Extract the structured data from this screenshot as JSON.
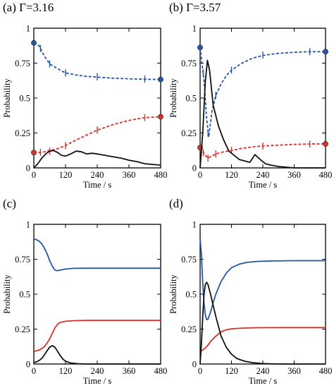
{
  "colors": {
    "blue": "#2456a8",
    "red": "#d8302a",
    "black": "#111111"
  },
  "chart_data": [
    {
      "panel": "(a)",
      "title": "(a) Γ=3.16",
      "type": "line",
      "xlabel": "Time / s",
      "ylabel": "Probability",
      "xlim": [
        0,
        480
      ],
      "ylim": [
        0,
        1
      ],
      "xticks": [
        "0",
        "120",
        "240",
        "360",
        "480"
      ],
      "yticks": [
        "0",
        "0.25",
        "0.5",
        "0.75",
        "1"
      ],
      "grid": false,
      "series": [
        {
          "color": "blue",
          "style": "dashed",
          "points": [
            [
              0,
              0.895
            ],
            [
              20,
              0.875
            ],
            [
              40,
              0.8
            ],
            [
              60,
              0.745
            ],
            [
              90,
              0.71
            ],
            [
              120,
              0.68
            ],
            [
              160,
              0.665
            ],
            [
              200,
              0.655
            ],
            [
              240,
              0.65
            ],
            [
              300,
              0.642
            ],
            [
              360,
              0.638
            ],
            [
              420,
              0.635
            ],
            [
              480,
              0.633
            ]
          ],
          "markers": [
            [
              0,
              0.895
            ],
            [
              480,
              0.633
            ]
          ],
          "errorbars": [
            [
              25,
              0.855
            ],
            [
              60,
              0.745
            ],
            [
              120,
              0.68
            ],
            [
              240,
              0.652
            ],
            [
              420,
              0.636
            ]
          ]
        },
        {
          "color": "red",
          "style": "dashed",
          "points": [
            [
              0,
              0.11
            ],
            [
              20,
              0.11
            ],
            [
              40,
              0.115
            ],
            [
              60,
              0.125
            ],
            [
              90,
              0.138
            ],
            [
              120,
              0.16
            ],
            [
              160,
              0.2
            ],
            [
              200,
              0.235
            ],
            [
              240,
              0.27
            ],
            [
              300,
              0.31
            ],
            [
              360,
              0.34
            ],
            [
              420,
              0.36
            ],
            [
              480,
              0.366
            ]
          ],
          "markers": [
            [
              0,
              0.11
            ],
            [
              480,
              0.366
            ]
          ],
          "errorbars": [
            [
              25,
              0.112
            ],
            [
              60,
              0.12
            ],
            [
              120,
              0.16
            ],
            [
              240,
              0.272
            ],
            [
              420,
              0.36
            ]
          ]
        },
        {
          "color": "black",
          "style": "solid",
          "points": [
            [
              0,
              0
            ],
            [
              15,
              0.03
            ],
            [
              30,
              0.07
            ],
            [
              45,
              0.1
            ],
            [
              60,
              0.12
            ],
            [
              75,
              0.125
            ],
            [
              90,
              0.11
            ],
            [
              105,
              0.09
            ],
            [
              120,
              0.085
            ],
            [
              140,
              0.1
            ],
            [
              160,
              0.12
            ],
            [
              180,
              0.115
            ],
            [
              200,
              0.1
            ],
            [
              220,
              0.105
            ],
            [
              240,
              0.1
            ],
            [
              270,
              0.09
            ],
            [
              300,
              0.08
            ],
            [
              330,
              0.07
            ],
            [
              360,
              0.055
            ],
            [
              390,
              0.045
            ],
            [
              420,
              0.03
            ],
            [
              450,
              0.025
            ],
            [
              480,
              0.02
            ]
          ]
        }
      ]
    },
    {
      "panel": "(b)",
      "title": "(b) Γ=3.57",
      "type": "line",
      "xlabel": "Time / s",
      "ylabel": "Probability",
      "xlim": [
        0,
        480
      ],
      "ylim": [
        0,
        1
      ],
      "xticks": [
        "0",
        "120",
        "240",
        "360",
        "480"
      ],
      "yticks": [
        "0",
        "0.25",
        "0.5",
        "0.75",
        "1"
      ],
      "grid": false,
      "series": [
        {
          "color": "blue",
          "style": "dashed",
          "points": [
            [
              0,
              0.862
            ],
            [
              15,
              0.62
            ],
            [
              25,
              0.35
            ],
            [
              33,
              0.22
            ],
            [
              45,
              0.4
            ],
            [
              60,
              0.52
            ],
            [
              80,
              0.6
            ],
            [
              100,
              0.66
            ],
            [
              120,
              0.7
            ],
            [
              160,
              0.75
            ],
            [
              200,
              0.785
            ],
            [
              240,
              0.805
            ],
            [
              300,
              0.82
            ],
            [
              360,
              0.828
            ],
            [
              420,
              0.832
            ],
            [
              480,
              0.832
            ]
          ],
          "markers": [
            [
              0,
              0.862
            ],
            [
              480,
              0.832
            ]
          ],
          "errorbars": [
            [
              12,
              0.68
            ],
            [
              30,
              0.25
            ],
            [
              60,
              0.52
            ],
            [
              120,
              0.7
            ],
            [
              240,
              0.808
            ],
            [
              420,
              0.832
            ]
          ]
        },
        {
          "color": "red",
          "style": "dashed",
          "points": [
            [
              0,
              0.145
            ],
            [
              10,
              0.12
            ],
            [
              20,
              0.09
            ],
            [
              30,
              0.07
            ],
            [
              45,
              0.085
            ],
            [
              60,
              0.1
            ],
            [
              90,
              0.115
            ],
            [
              120,
              0.125
            ],
            [
              160,
              0.14
            ],
            [
              200,
              0.15
            ],
            [
              240,
              0.157
            ],
            [
              300,
              0.163
            ],
            [
              360,
              0.168
            ],
            [
              420,
              0.171
            ],
            [
              480,
              0.172
            ]
          ],
          "markers": [
            [
              0,
              0.145
            ],
            [
              480,
              0.172
            ]
          ],
          "errorbars": [
            [
              12,
              0.11
            ],
            [
              30,
              0.07
            ],
            [
              60,
              0.1
            ],
            [
              120,
              0.125
            ],
            [
              240,
              0.157
            ],
            [
              420,
              0.17
            ]
          ]
        },
        {
          "color": "black",
          "style": "solid",
          "points": [
            [
              0,
              0
            ],
            [
              10,
              0.25
            ],
            [
              20,
              0.62
            ],
            [
              28,
              0.77
            ],
            [
              36,
              0.7
            ],
            [
              50,
              0.45
            ],
            [
              70,
              0.3
            ],
            [
              90,
              0.2
            ],
            [
              110,
              0.12
            ],
            [
              130,
              0.09
            ],
            [
              150,
              0.06
            ],
            [
              170,
              0.05
            ],
            [
              190,
              0.04
            ],
            [
              210,
              0.095
            ],
            [
              230,
              0.06
            ],
            [
              250,
              0.03
            ],
            [
              270,
              0.02
            ],
            [
              300,
              0.01
            ],
            [
              330,
              0.005
            ],
            [
              360,
              0
            ],
            [
              420,
              0
            ],
            [
              480,
              0
            ]
          ]
        }
      ]
    },
    {
      "panel": "(c)",
      "title": "(c)",
      "type": "line",
      "xlabel": "Time / s",
      "ylabel": "Probability",
      "xlim": [
        0,
        480
      ],
      "ylim": [
        0,
        1
      ],
      "xticks": [
        "0",
        "120",
        "240",
        "360",
        "480"
      ],
      "yticks": [
        "0",
        "0.25",
        "0.5",
        "0.75",
        "1"
      ],
      "grid": false,
      "series": [
        {
          "color": "blue",
          "style": "solid",
          "points": [
            [
              0,
              0.895
            ],
            [
              10,
              0.89
            ],
            [
              20,
              0.88
            ],
            [
              30,
              0.86
            ],
            [
              40,
              0.83
            ],
            [
              50,
              0.79
            ],
            [
              60,
              0.74
            ],
            [
              70,
              0.7
            ],
            [
              80,
              0.672
            ],
            [
              90,
              0.668
            ],
            [
              100,
              0.672
            ],
            [
              120,
              0.68
            ],
            [
              150,
              0.685
            ],
            [
              200,
              0.686
            ],
            [
              300,
              0.686
            ],
            [
              480,
              0.686
            ]
          ]
        },
        {
          "color": "red",
          "style": "solid",
          "points": [
            [
              0,
              0.09
            ],
            [
              10,
              0.095
            ],
            [
              20,
              0.1
            ],
            [
              30,
              0.11
            ],
            [
              40,
              0.125
            ],
            [
              50,
              0.15
            ],
            [
              60,
              0.18
            ],
            [
              70,
              0.22
            ],
            [
              80,
              0.26
            ],
            [
              90,
              0.285
            ],
            [
              100,
              0.298
            ],
            [
              120,
              0.306
            ],
            [
              150,
              0.31
            ],
            [
              200,
              0.312
            ],
            [
              300,
              0.312
            ],
            [
              480,
              0.312
            ]
          ]
        },
        {
          "color": "black",
          "style": "solid",
          "points": [
            [
              0,
              0.01
            ],
            [
              10,
              0.015
            ],
            [
              20,
              0.025
            ],
            [
              30,
              0.04
            ],
            [
              40,
              0.065
            ],
            [
              50,
              0.095
            ],
            [
              60,
              0.12
            ],
            [
              70,
              0.132
            ],
            [
              80,
              0.12
            ],
            [
              90,
              0.09
            ],
            [
              100,
              0.06
            ],
            [
              110,
              0.035
            ],
            [
              120,
              0.02
            ],
            [
              140,
              0.007
            ],
            [
              170,
              0.002
            ],
            [
              200,
              0
            ],
            [
              300,
              0
            ],
            [
              480,
              0
            ]
          ]
        }
      ]
    },
    {
      "panel": "(d)",
      "title": "(d)",
      "type": "line",
      "xlabel": "Time / s",
      "ylabel": "Probability",
      "xlim": [
        0,
        480
      ],
      "ylim": [
        0,
        1
      ],
      "xticks": [
        "0",
        "120",
        "240",
        "360",
        "480"
      ],
      "yticks": [
        "0",
        "0.25",
        "0.5",
        "0.75",
        "1"
      ],
      "grid": false,
      "series": [
        {
          "color": "blue",
          "style": "solid",
          "points": [
            [
              0,
              0.9
            ],
            [
              5,
              0.78
            ],
            [
              10,
              0.58
            ],
            [
              15,
              0.43
            ],
            [
              20,
              0.35
            ],
            [
              25,
              0.318
            ],
            [
              30,
              0.32
            ],
            [
              40,
              0.37
            ],
            [
              50,
              0.44
            ],
            [
              60,
              0.5
            ],
            [
              80,
              0.59
            ],
            [
              100,
              0.65
            ],
            [
              120,
              0.69
            ],
            [
              150,
              0.715
            ],
            [
              180,
              0.728
            ],
            [
              220,
              0.735
            ],
            [
              280,
              0.738
            ],
            [
              360,
              0.74
            ],
            [
              480,
              0.74
            ]
          ]
        },
        {
          "color": "red",
          "style": "solid",
          "points": [
            [
              0,
              0.09
            ],
            [
              10,
              0.1
            ],
            [
              20,
              0.115
            ],
            [
              30,
              0.135
            ],
            [
              40,
              0.16
            ],
            [
              60,
              0.2
            ],
            [
              80,
              0.23
            ],
            [
              100,
              0.245
            ],
            [
              120,
              0.252
            ],
            [
              160,
              0.257
            ],
            [
              220,
              0.26
            ],
            [
              300,
              0.261
            ],
            [
              480,
              0.261
            ]
          ]
        },
        {
          "color": "black",
          "style": "solid",
          "points": [
            [
              0,
              0
            ],
            [
              5,
              0.15
            ],
            [
              10,
              0.34
            ],
            [
              15,
              0.5
            ],
            [
              20,
              0.57
            ],
            [
              25,
              0.585
            ],
            [
              30,
              0.57
            ],
            [
              40,
              0.5
            ],
            [
              50,
              0.42
            ],
            [
              60,
              0.34
            ],
            [
              80,
              0.2
            ],
            [
              100,
              0.12
            ],
            [
              120,
              0.07
            ],
            [
              140,
              0.04
            ],
            [
              170,
              0.02
            ],
            [
              200,
              0.01
            ],
            [
              240,
              0.003
            ],
            [
              300,
              0
            ],
            [
              480,
              0
            ]
          ]
        }
      ]
    }
  ]
}
